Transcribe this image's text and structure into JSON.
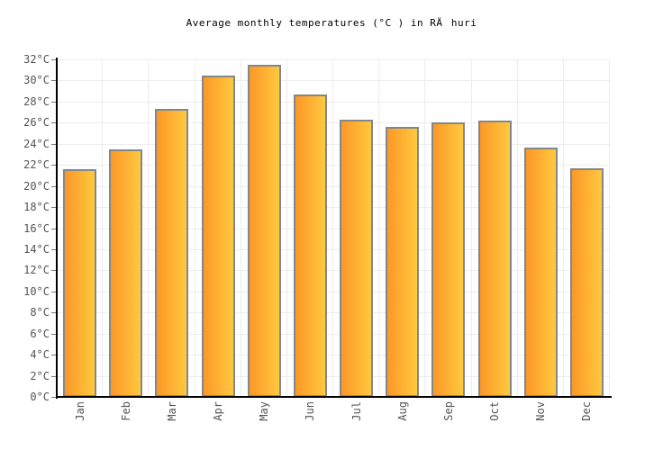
{
  "chart_data": {
    "type": "bar",
    "title": "Average monthly temperatures (°C ) in RÄhuri",
    "categories": [
      "Jan",
      "Feb",
      "Mar",
      "Apr",
      "May",
      "Jun",
      "Jul",
      "Aug",
      "Sep",
      "Oct",
      "Nov",
      "Dec"
    ],
    "values": [
      21.6,
      23.5,
      27.3,
      30.5,
      31.5,
      28.7,
      26.3,
      25.6,
      26.0,
      26.2,
      23.6,
      21.7
    ],
    "xlabel": "",
    "ylabel": "",
    "ylim": [
      0,
      32
    ],
    "ytick_step": 2,
    "ytick_suffix": "°C",
    "grid": true,
    "legend": false,
    "colors": {
      "bar_gradient_start": "#fc9728",
      "bar_gradient_end": "#ffc93e",
      "bar_border": "#82878b",
      "gridline": "#ededed",
      "axis": "#000000",
      "tick_label": "#545454",
      "title_text": "#000000",
      "background": "#ffffff"
    }
  }
}
